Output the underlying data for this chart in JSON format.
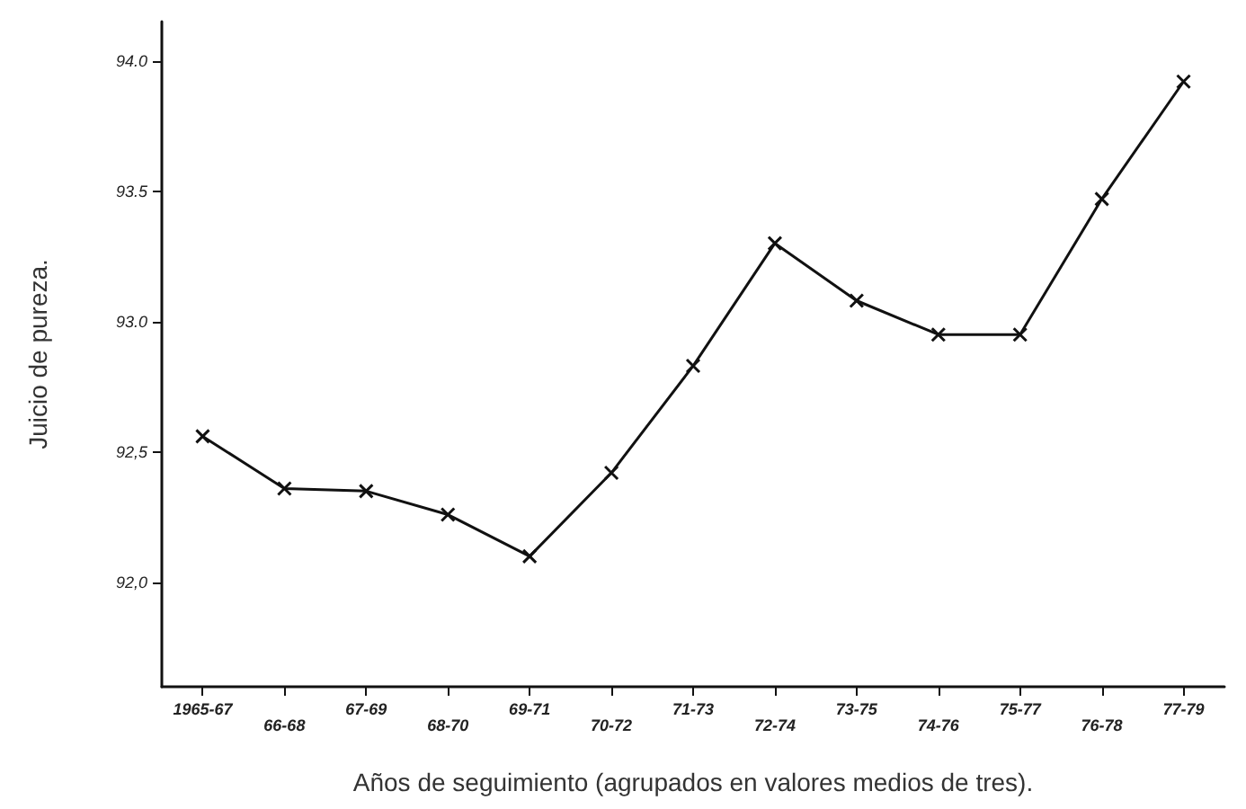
{
  "chart_data": {
    "type": "line",
    "xlabel": "Años de seguimiento (agrupados en valores medios de tres).",
    "ylabel": "Juicio de pureza.",
    "categories": [
      "1965-67",
      "66-68",
      "67-69",
      "68-70",
      "69-71",
      "70-72",
      "71-73",
      "72-74",
      "73-75",
      "74-76",
      "75-77",
      "76-78",
      "77-79"
    ],
    "series": [
      {
        "color": "#111111",
        "values": [
          92.56,
          92.36,
          92.35,
          92.26,
          92.1,
          92.42,
          92.83,
          93.3,
          93.08,
          92.95,
          92.95,
          93.47,
          93.92
        ]
      }
    ],
    "ylim": [
      91.6,
      94.15
    ],
    "yticks": [
      {
        "value": 92,
        "label": "92,0"
      },
      {
        "value": 92.5,
        "label": "92,5"
      },
      {
        "value": 93,
        "label": "93.0"
      },
      {
        "value": 93.5,
        "label": "93.5"
      },
      {
        "value": 94,
        "label": "94.0"
      }
    ],
    "marker": "cross",
    "line_style": "solid"
  }
}
